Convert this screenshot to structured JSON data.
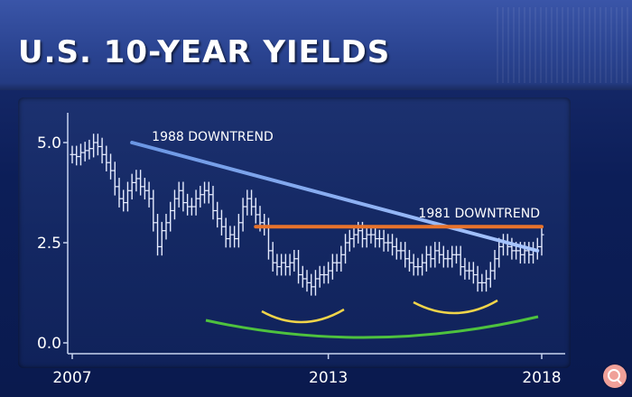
{
  "header": {
    "title": "U.S. 10-YEAR YIELDS"
  },
  "chart_data": {
    "type": "bar",
    "style": "OHLC",
    "title": "U.S. 10-YEAR YIELDS",
    "xlabel": "",
    "ylabel": "",
    "x_ticks": [
      "2007",
      "2013",
      "2018"
    ],
    "y_ticks": [
      "0.0",
      "2.5",
      "5.0"
    ],
    "xlim": [
      2007,
      2018
    ],
    "ylim": [
      0,
      5.0
    ],
    "grid": false,
    "legend": "none",
    "series": [
      {
        "x": [
          2007.0,
          2007.1,
          2007.2,
          2007.3,
          2007.4,
          2007.5,
          2007.6,
          2007.7,
          2007.8,
          2007.9,
          2008.0,
          2008.1,
          2008.2,
          2008.3,
          2008.4,
          2008.5,
          2008.6,
          2008.7,
          2008.8,
          2008.9,
          2009.0,
          2009.1,
          2009.2,
          2009.3,
          2009.4,
          2009.5,
          2009.6,
          2009.7,
          2009.8,
          2009.9,
          2010.0,
          2010.1,
          2010.2,
          2010.3,
          2010.4,
          2010.5,
          2010.6,
          2010.7,
          2010.8,
          2010.9,
          2011.0,
          2011.1,
          2011.2,
          2011.3,
          2011.4,
          2011.5,
          2011.6,
          2011.7,
          2011.8,
          2011.9,
          2012.0,
          2012.1,
          2012.2,
          2012.3,
          2012.4,
          2012.5,
          2012.6,
          2012.7,
          2012.8,
          2012.9,
          2013.0,
          2013.1,
          2013.2,
          2013.3,
          2013.4,
          2013.5,
          2013.6,
          2013.7,
          2013.8,
          2013.9,
          2014.0,
          2014.1,
          2014.2,
          2014.3,
          2014.4,
          2014.5,
          2014.6,
          2014.7,
          2014.8,
          2014.9,
          2015.0,
          2015.1,
          2015.2,
          2015.3,
          2015.4,
          2015.5,
          2015.6,
          2015.7,
          2015.8,
          2015.9,
          2016.0,
          2016.1,
          2016.2,
          2016.3,
          2016.4,
          2016.5,
          2016.6,
          2016.7,
          2016.8,
          2016.9,
          2017.0,
          2017.1,
          2017.2,
          2017.3,
          2017.4,
          2017.5,
          2017.6,
          2017.7,
          2017.8,
          2017.9,
          2018.0
        ],
        "values": [
          4.7,
          4.65,
          4.75,
          4.8,
          4.85,
          5.0,
          4.9,
          4.7,
          4.5,
          4.3,
          3.9,
          3.6,
          3.5,
          3.8,
          4.0,
          4.1,
          3.9,
          3.8,
          3.6,
          3.0,
          2.4,
          2.8,
          3.0,
          3.3,
          3.6,
          3.8,
          3.5,
          3.4,
          3.4,
          3.6,
          3.7,
          3.8,
          3.7,
          3.3,
          3.1,
          2.9,
          2.6,
          2.7,
          2.6,
          3.0,
          3.4,
          3.6,
          3.4,
          3.2,
          3.0,
          2.9,
          2.3,
          2.0,
          1.9,
          2.0,
          1.9,
          2.0,
          2.1,
          1.7,
          1.6,
          1.5,
          1.4,
          1.6,
          1.7,
          1.7,
          1.8,
          2.0,
          2.0,
          2.2,
          2.5,
          2.6,
          2.7,
          2.8,
          2.6,
          2.7,
          2.7,
          2.6,
          2.6,
          2.5,
          2.5,
          2.4,
          2.3,
          2.3,
          2.1,
          2.0,
          1.9,
          1.9,
          2.0,
          2.2,
          2.1,
          2.3,
          2.2,
          2.1,
          2.1,
          2.2,
          2.2,
          1.9,
          1.8,
          1.8,
          1.7,
          1.5,
          1.5,
          1.6,
          1.8,
          2.1,
          2.4,
          2.5,
          2.4,
          2.3,
          2.3,
          2.2,
          2.3,
          2.2,
          2.3,
          2.4,
          2.7
        ]
      }
    ],
    "annotations": [
      {
        "label": "1988 DOWNTREND",
        "from": [
          2008.4,
          5.0
        ],
        "to": [
          2017.9,
          2.3
        ],
        "color": "#7aa6ee"
      },
      {
        "label": "1981 DOWNTREND",
        "from": [
          2011.3,
          2.9
        ],
        "to": [
          2018.0,
          2.9
        ],
        "color": "#e8732b"
      }
    ],
    "arc_colors": {
      "small": "#f0d44a",
      "large": "#4ec23e"
    }
  }
}
